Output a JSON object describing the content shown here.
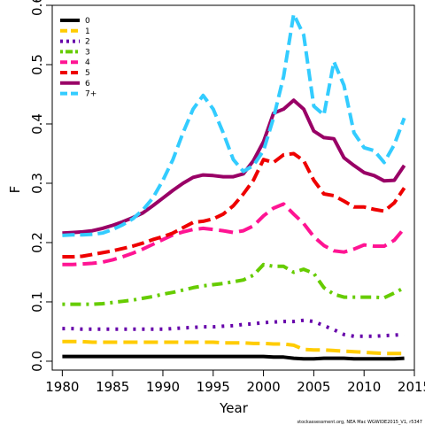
{
  "chart_data": {
    "type": "line",
    "xlabel": "Year",
    "ylabel": "F",
    "xlim": [
      1979,
      2015
    ],
    "ylim": [
      -0.015,
      0.6
    ],
    "xticks": [
      1980,
      1985,
      1990,
      1995,
      2000,
      2005,
      2010,
      2015
    ],
    "yticks": [
      0.0,
      0.1,
      0.2,
      0.3,
      0.4,
      0.5,
      0.6
    ],
    "ytick_labels": [
      "0.0",
      "0.1",
      "0.2",
      "0.3",
      "0.4",
      "0.5",
      "0.6"
    ],
    "grid": false,
    "legend_position": "top-left",
    "x": [
      1980,
      1981,
      1982,
      1983,
      1984,
      1985,
      1986,
      1987,
      1988,
      1989,
      1990,
      1991,
      1992,
      1993,
      1994,
      1995,
      1996,
      1997,
      1998,
      1999,
      2000,
      2001,
      2002,
      2003,
      2004,
      2005,
      2006,
      2007,
      2008,
      2009,
      2010,
      2011,
      2012,
      2013,
      2014
    ],
    "series": [
      {
        "name": "0",
        "color": "#000000",
        "dash": "solid",
        "values": [
          0.008,
          0.008,
          0.008,
          0.008,
          0.008,
          0.008,
          0.008,
          0.008,
          0.008,
          0.008,
          0.008,
          0.008,
          0.008,
          0.008,
          0.008,
          0.008,
          0.008,
          0.008,
          0.008,
          0.008,
          0.008,
          0.007,
          0.007,
          0.005,
          0.004,
          0.004,
          0.005,
          0.005,
          0.005,
          0.004,
          0.004,
          0.004,
          0.004,
          0.004,
          0.005
        ]
      },
      {
        "name": "1",
        "color": "#ffcc00",
        "dash": "longdash",
        "values": [
          0.033,
          0.033,
          0.033,
          0.032,
          0.032,
          0.032,
          0.032,
          0.032,
          0.032,
          0.032,
          0.032,
          0.032,
          0.032,
          0.032,
          0.032,
          0.032,
          0.031,
          0.031,
          0.031,
          0.03,
          0.03,
          0.029,
          0.029,
          0.027,
          0.02,
          0.019,
          0.019,
          0.018,
          0.017,
          0.016,
          0.015,
          0.014,
          0.013,
          0.013,
          0.013
        ]
      },
      {
        "name": "2",
        "color": "#6600aa",
        "dash": "dot",
        "values": [
          0.055,
          0.055,
          0.054,
          0.054,
          0.054,
          0.054,
          0.054,
          0.054,
          0.054,
          0.054,
          0.054,
          0.055,
          0.056,
          0.057,
          0.058,
          0.058,
          0.059,
          0.06,
          0.062,
          0.063,
          0.065,
          0.066,
          0.067,
          0.067,
          0.069,
          0.067,
          0.06,
          0.053,
          0.045,
          0.042,
          0.042,
          0.042,
          0.043,
          0.044,
          0.045
        ]
      },
      {
        "name": "3",
        "color": "#66cc00",
        "dash": "dotdash",
        "values": [
          0.096,
          0.096,
          0.096,
          0.096,
          0.097,
          0.099,
          0.101,
          0.103,
          0.106,
          0.109,
          0.113,
          0.116,
          0.12,
          0.124,
          0.127,
          0.129,
          0.131,
          0.134,
          0.137,
          0.145,
          0.163,
          0.16,
          0.16,
          0.15,
          0.155,
          0.148,
          0.124,
          0.113,
          0.108,
          0.108,
          0.108,
          0.108,
          0.107,
          0.115,
          0.124
        ]
      },
      {
        "name": "4",
        "color": "#ff1493",
        "dash": "longdash",
        "values": [
          0.163,
          0.163,
          0.164,
          0.165,
          0.167,
          0.171,
          0.176,
          0.182,
          0.189,
          0.197,
          0.205,
          0.213,
          0.218,
          0.222,
          0.224,
          0.222,
          0.22,
          0.217,
          0.22,
          0.228,
          0.245,
          0.258,
          0.265,
          0.248,
          0.232,
          0.21,
          0.195,
          0.186,
          0.184,
          0.189,
          0.196,
          0.194,
          0.194,
          0.204,
          0.224
        ]
      },
      {
        "name": "5",
        "color": "#ee0000",
        "dash": "dash",
        "values": [
          0.176,
          0.176,
          0.177,
          0.18,
          0.183,
          0.186,
          0.19,
          0.194,
          0.199,
          0.205,
          0.21,
          0.216,
          0.225,
          0.234,
          0.236,
          0.24,
          0.248,
          0.262,
          0.282,
          0.305,
          0.34,
          0.335,
          0.348,
          0.35,
          0.338,
          0.305,
          0.282,
          0.279,
          0.27,
          0.26,
          0.26,
          0.256,
          0.253,
          0.267,
          0.292
        ]
      },
      {
        "name": "6",
        "color": "#990066",
        "dash": "solid",
        "values": [
          0.216,
          0.217,
          0.218,
          0.22,
          0.224,
          0.229,
          0.235,
          0.242,
          0.25,
          0.262,
          0.275,
          0.288,
          0.3,
          0.31,
          0.314,
          0.313,
          0.311,
          0.311,
          0.316,
          0.338,
          0.37,
          0.418,
          0.425,
          0.44,
          0.425,
          0.388,
          0.377,
          0.375,
          0.343,
          0.33,
          0.318,
          0.313,
          0.304,
          0.305,
          0.33
        ]
      },
      {
        "name": "7+",
        "color": "#33ccff",
        "dash": "dash",
        "values": [
          0.212,
          0.213,
          0.213,
          0.214,
          0.216,
          0.222,
          0.23,
          0.24,
          0.255,
          0.275,
          0.305,
          0.34,
          0.385,
          0.425,
          0.448,
          0.425,
          0.385,
          0.34,
          0.32,
          0.33,
          0.355,
          0.41,
          0.48,
          0.585,
          0.55,
          0.43,
          0.415,
          0.505,
          0.465,
          0.385,
          0.36,
          0.355,
          0.335,
          0.365,
          0.41
        ]
      }
    ],
    "footnote": "stockassessment.org, NEA Mac WGWIDE2015_V1, r5347"
  }
}
